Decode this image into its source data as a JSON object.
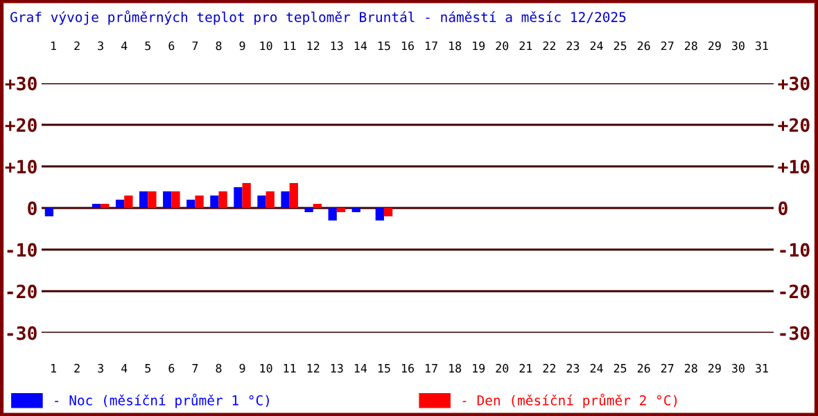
{
  "chart_data": {
    "type": "bar",
    "title": "Graf vývoje průměrných teplot pro teploměr Bruntál - náměstí a měsíc 12/2025",
    "categories": [
      "1",
      "2",
      "3",
      "4",
      "5",
      "6",
      "7",
      "8",
      "9",
      "10",
      "11",
      "12",
      "13",
      "14",
      "15",
      "16",
      "17",
      "18",
      "19",
      "20",
      "21",
      "22",
      "23",
      "24",
      "25",
      "26",
      "27",
      "28",
      "29",
      "30",
      "31"
    ],
    "series": [
      {
        "name": "- Noc (měsíční průměr 1 °C)",
        "color": "#0000ff",
        "values": [
          -2,
          null,
          1,
          2,
          4,
          4,
          2,
          3,
          5,
          3,
          4,
          -1,
          -3,
          -1,
          -3,
          null,
          null,
          null,
          null,
          null,
          null,
          null,
          null,
          null,
          null,
          null,
          null,
          null,
          null,
          null,
          null
        ]
      },
      {
        "name": "- Den (měsíční průměr 2 °C)",
        "color": "#ff0000",
        "values": [
          null,
          null,
          1,
          3,
          4,
          4,
          3,
          4,
          6,
          4,
          6,
          1,
          -1,
          null,
          -2,
          null,
          null,
          null,
          null,
          null,
          null,
          null,
          null,
          null,
          null,
          null,
          null,
          null,
          null,
          null,
          null
        ]
      }
    ],
    "ylim": [
      -30,
      30
    ],
    "yticks": [
      {
        "value": 30,
        "label": "+30"
      },
      {
        "value": 20,
        "label": "+20"
      },
      {
        "value": 10,
        "label": "+10"
      },
      0,
      {
        "value": -10,
        "label": "-10"
      },
      {
        "value": -20,
        "label": "-20"
      },
      {
        "value": -30,
        "label": "-30"
      }
    ],
    "y2lim": [
      -30,
      30
    ],
    "y2ticks": [
      {
        "value": 30,
        "label": "+30"
      },
      {
        "value": 20,
        "label": "+20"
      },
      {
        "value": 10,
        "label": "+10"
      },
      0,
      {
        "value": -10,
        "label": "-10"
      },
      {
        "value": -20,
        "label": "-20"
      },
      {
        "value": -30,
        "label": "-30"
      }
    ],
    "grid": "y",
    "legend": "bottom"
  }
}
